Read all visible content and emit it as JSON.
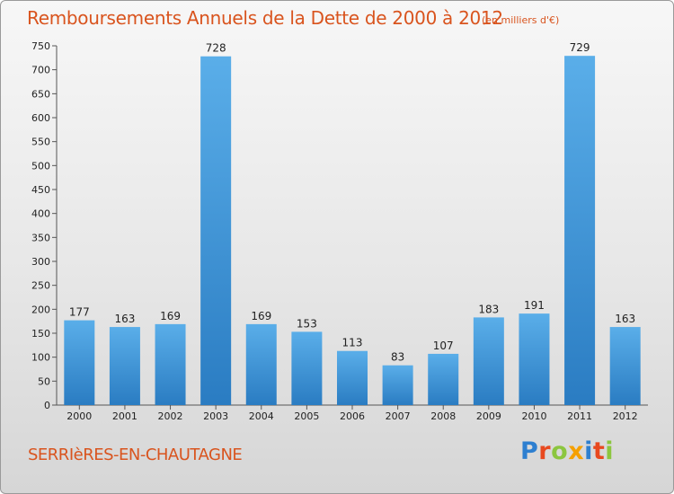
{
  "chart_data": {
    "type": "bar",
    "title": "Remboursements Annuels de la Dette de 2000 à 2012",
    "subtitle": "(en milliers d'€)",
    "categories": [
      "2000",
      "2001",
      "2002",
      "2003",
      "2004",
      "2005",
      "2006",
      "2007",
      "2008",
      "2009",
      "2010",
      "2011",
      "2012"
    ],
    "values": [
      177,
      163,
      169,
      728,
      169,
      153,
      113,
      83,
      107,
      183,
      191,
      729,
      163
    ],
    "data_labels": [
      "177",
      "163",
      "169",
      "728",
      "169",
      "153",
      "113",
      "83",
      "107",
      "183",
      "191",
      "729",
      "163"
    ],
    "y_ticks": [
      "0",
      "50",
      "100",
      "150",
      "200",
      "250",
      "300",
      "350",
      "400",
      "450",
      "500",
      "550",
      "600",
      "650",
      "700",
      "750"
    ],
    "ylim": [
      0,
      750
    ],
    "grid": false,
    "legend": "none",
    "bar_color": "#3d8fd6"
  },
  "footer": {
    "commune": "SERRIèRES-EN-CHAUTAGNE",
    "logo_letters": [
      {
        "ch": "P",
        "color": "#2d7fd0"
      },
      {
        "ch": "r",
        "color": "#e8491f"
      },
      {
        "ch": "o",
        "color": "#8cc63f"
      },
      {
        "ch": "x",
        "color": "#f5a000"
      },
      {
        "ch": "i",
        "color": "#2d7fd0"
      },
      {
        "ch": "t",
        "color": "#e8491f"
      },
      {
        "ch": "i",
        "color": "#8cc63f"
      }
    ]
  },
  "colors": {
    "title": "#d9541e",
    "axis_text": "#222222",
    "axis_line": "#555555"
  }
}
